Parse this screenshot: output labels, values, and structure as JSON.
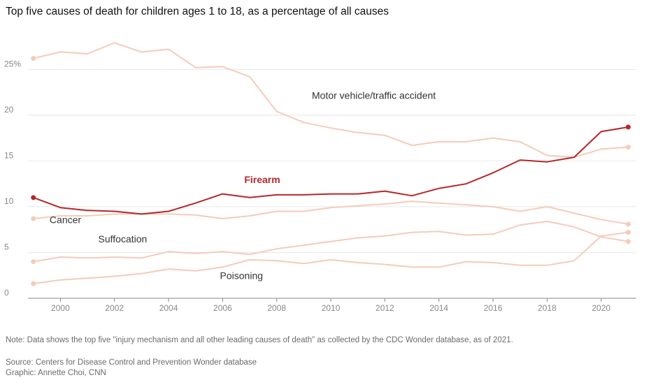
{
  "title": "Top five causes of death for children ages 1 to 18, as a percentage of all causes",
  "note": "Note: Data shows the top five \"injury mechanism and all other leading causes of death\" as collected by the CDC Wonder database, as of 2021.",
  "source": "Source: Centers for Disease Control and Prevention Wonder database",
  "graphic": "Graphic: Annette Choi, CNN",
  "colors": {
    "highlight": "#b5272a",
    "muted": "#f5cbb9",
    "grid": "#e8e8e8",
    "axis": "#888888",
    "tick_text": "#888888"
  },
  "chart_data": {
    "type": "line",
    "x": [
      1999,
      2000,
      2001,
      2002,
      2003,
      2004,
      2005,
      2006,
      2007,
      2008,
      2009,
      2010,
      2011,
      2012,
      2013,
      2014,
      2015,
      2016,
      2017,
      2018,
      2019,
      2020,
      2021
    ],
    "xlim": [
      1998.8,
      2021.3
    ],
    "ylim": [
      0,
      28
    ],
    "y_ticks": [
      0,
      5,
      10,
      15,
      20,
      25
    ],
    "y_tick_labels": [
      "0",
      "5",
      "10",
      "15",
      "20",
      "25%"
    ],
    "x_ticks": [
      2000,
      2002,
      2004,
      2006,
      2008,
      2010,
      2012,
      2014,
      2016,
      2018,
      2020
    ],
    "x_tick_labels": [
      "2000",
      "2002",
      "2004",
      "2006",
      "2008",
      "2010",
      "2012",
      "2014",
      "2016",
      "2018",
      "2020"
    ],
    "grid": true,
    "series": [
      {
        "name": "Motor vehicle/traffic accident",
        "highlight": false,
        "values": [
          26.2,
          26.9,
          26.7,
          27.9,
          26.9,
          27.2,
          25.2,
          25.3,
          24.2,
          20.4,
          19.2,
          18.6,
          18.1,
          17.8,
          16.7,
          17.1,
          17.1,
          17.5,
          17.1,
          15.6,
          15.4,
          16.3,
          16.5
        ]
      },
      {
        "name": "Firearm",
        "highlight": true,
        "values": [
          11.0,
          9.9,
          9.6,
          9.5,
          9.2,
          9.5,
          10.4,
          11.4,
          11.0,
          11.3,
          11.3,
          11.4,
          11.4,
          11.7,
          11.2,
          12.0,
          12.5,
          13.7,
          15.1,
          14.9,
          15.4,
          18.2,
          18.7
        ]
      },
      {
        "name": "Cancer",
        "highlight": false,
        "values": [
          8.7,
          9.0,
          9.0,
          9.2,
          9.2,
          9.2,
          9.1,
          8.7,
          9.0,
          9.5,
          9.5,
          9.9,
          10.1,
          10.3,
          10.6,
          10.4,
          10.2,
          10.0,
          9.5,
          10.0,
          9.3,
          8.6,
          8.1
        ]
      },
      {
        "name": "Suffocation",
        "highlight": false,
        "values": [
          4.0,
          4.5,
          4.4,
          4.5,
          4.4,
          5.1,
          4.9,
          5.1,
          4.8,
          5.4,
          5.8,
          6.2,
          6.6,
          6.8,
          7.2,
          7.3,
          6.9,
          7.0,
          8.0,
          8.4,
          7.8,
          6.7,
          6.2
        ]
      },
      {
        "name": "Poisoning",
        "highlight": false,
        "values": [
          1.6,
          2.0,
          2.2,
          2.4,
          2.7,
          3.2,
          3.0,
          3.4,
          4.2,
          4.1,
          3.8,
          4.2,
          3.9,
          3.7,
          3.4,
          3.4,
          4.0,
          3.9,
          3.6,
          3.6,
          4.1,
          6.8,
          7.2
        ]
      }
    ],
    "labels": [
      {
        "text": "Motor vehicle/traffic accident",
        "x": 2009.3,
        "y": 21.8,
        "series": "Motor vehicle/traffic accident"
      },
      {
        "text": "Firearm",
        "x": 2006.8,
        "y": 12.6,
        "series": "Firearm"
      },
      {
        "text": "Cancer",
        "x": 1999.6,
        "y": 8.2,
        "series": "Cancer"
      },
      {
        "text": "Suffocation",
        "x": 2001.4,
        "y": 6.1,
        "series": "Suffocation"
      },
      {
        "text": "Poisoning",
        "x": 2005.9,
        "y": 2.1,
        "series": "Poisoning"
      }
    ]
  }
}
